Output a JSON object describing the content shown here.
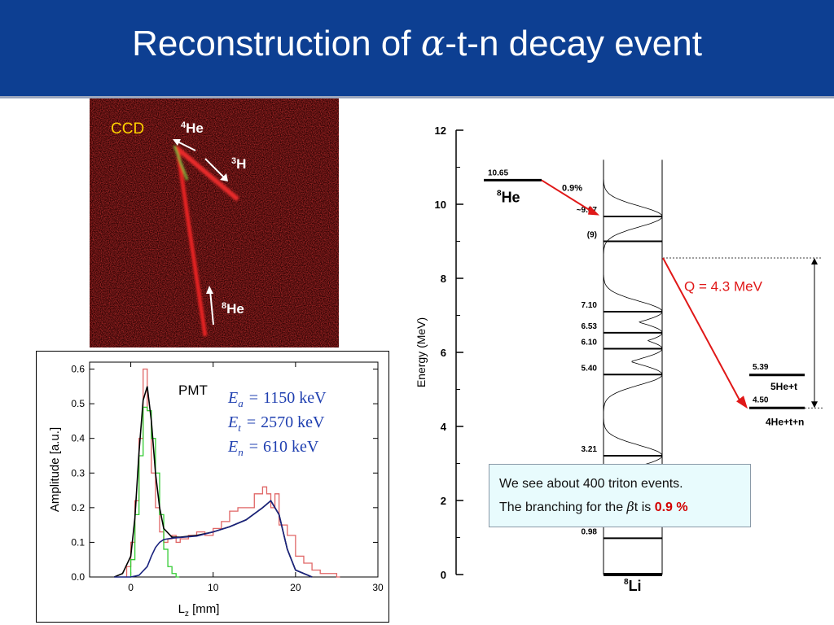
{
  "title": {
    "prefix": "Reconstruction of ",
    "greek": "α",
    "suffix": "-t-n decay event"
  },
  "ccd": {
    "label": "CCD",
    "tracks": {
      "he4": "He",
      "he4_mass": "4",
      "h3": "H",
      "h3_mass": "3",
      "he8": "He",
      "he8_mass": "8"
    }
  },
  "colors": {
    "title_bg": "#0d3f92",
    "ccd_label": "#ffd200",
    "q_arrow": "#e01818",
    "info_bg": "#e8fbfd",
    "branching": "#d20000",
    "energy_text": "#1f3fb0"
  },
  "info": {
    "line1": "We see about 400 triton events.",
    "line2_prefix": "The branching for the ",
    "line2_greek": "β",
    "line2_mid": "t is ",
    "line2_value": "0.9 %"
  },
  "chart_data": [
    {
      "type": "line",
      "panel": "PMT",
      "xlabel": "L",
      "xlabel_sub": "z",
      "xlabel_unit": " [mm]",
      "ylabel": "Amplitude [a.u.]",
      "xlim": [
        -5,
        30
      ],
      "ylim": [
        0.0,
        0.62
      ],
      "xticks": [
        "0",
        "10",
        "20",
        "30"
      ],
      "yticks": [
        "0.0",
        "0.1",
        "0.2",
        "0.3",
        "0.4",
        "0.5",
        "0.6"
      ],
      "annotations": [
        {
          "sym": "E",
          "sub": "a",
          "eq": "=",
          "val": "1150 keV"
        },
        {
          "sym": "E",
          "sub": "t",
          "eq": "=",
          "val": "2570 keV"
        },
        {
          "sym": "E",
          "sub": "n",
          "eq": "=",
          "val": "610 keV"
        }
      ],
      "series": [
        {
          "color": "#e06666",
          "style": "histogram",
          "x": [
            -0.5,
            0,
            0.5,
            1,
            1.5,
            2,
            2.5,
            3,
            3.5,
            4,
            4.5,
            5,
            5.5,
            6,
            7,
            8,
            9,
            10,
            11,
            12,
            13,
            14,
            15,
            16,
            16.5,
            17,
            17.5,
            18,
            19,
            20,
            21,
            22,
            23,
            24,
            25
          ],
          "y": [
            0.03,
            0.1,
            0.22,
            0.4,
            0.6,
            0.48,
            0.3,
            0.2,
            0.13,
            0.1,
            0.11,
            0.12,
            0.1,
            0.11,
            0.12,
            0.13,
            0.12,
            0.14,
            0.16,
            0.19,
            0.2,
            0.2,
            0.24,
            0.26,
            0.24,
            0.2,
            0.24,
            0.15,
            0.12,
            0.06,
            0.04,
            0.02,
            0.01,
            0.01,
            0.0
          ]
        },
        {
          "color": "#33cc33",
          "style": "histogram",
          "x": [
            0,
            0.5,
            1,
            1.5,
            2,
            2.5,
            3,
            3.5,
            4,
            4.5,
            5,
            5.5
          ],
          "y": [
            0.05,
            0.18,
            0.35,
            0.49,
            0.48,
            0.4,
            0.3,
            0.18,
            0.08,
            0.03,
            0.01,
            0.0
          ]
        },
        {
          "color": "#000000",
          "style": "line",
          "x": [
            -2,
            -1,
            0,
            0.5,
            1,
            1.5,
            2,
            2.5,
            3,
            3.5,
            4,
            5,
            6,
            8,
            10,
            12,
            14,
            16,
            17,
            18,
            19,
            20,
            22
          ],
          "y": [
            0.0,
            0.01,
            0.06,
            0.17,
            0.36,
            0.51,
            0.55,
            0.45,
            0.3,
            0.2,
            0.14,
            0.115,
            0.115,
            0.12,
            0.13,
            0.145,
            0.165,
            0.2,
            0.22,
            0.18,
            0.08,
            0.02,
            0.0
          ]
        },
        {
          "color": "#1a237e",
          "style": "line",
          "x": [
            -2,
            0,
            1,
            2,
            2.5,
            3,
            3.5,
            4,
            5,
            6,
            8,
            10,
            12,
            14,
            16,
            17,
            18,
            19,
            20,
            22
          ],
          "y": [
            0.0,
            0.0,
            0.005,
            0.03,
            0.06,
            0.085,
            0.1,
            0.108,
            0.112,
            0.114,
            0.118,
            0.13,
            0.145,
            0.165,
            0.2,
            0.22,
            0.18,
            0.08,
            0.02,
            0.0
          ]
        }
      ]
    },
    {
      "type": "diagram",
      "panel": "level-scheme",
      "ylabel": "Energy (MeV)",
      "ylim": [
        0,
        12
      ],
      "yticks": [
        "0",
        "2",
        "4",
        "6",
        "8",
        "10",
        "12"
      ],
      "parent": {
        "label": "He",
        "mass": "8",
        "energy": 10.65,
        "energy_label": "10.65",
        "branch": "0.9%"
      },
      "daughter": {
        "label": "Li",
        "mass": "8"
      },
      "levels": [
        {
          "energy": 9.67,
          "label": "~9.67",
          "width": 0.4
        },
        {
          "energy": 9.0,
          "label": "(9)",
          "width": 0
        },
        {
          "energy": 7.1,
          "label": "7.10",
          "width": 0.4
        },
        {
          "energy": 6.53,
          "label": "6.53",
          "width": 0.4
        },
        {
          "energy": 6.1,
          "label": "6.10",
          "width": 0.4
        },
        {
          "energy": 5.4,
          "label": "5.40",
          "width": 0.4
        },
        {
          "energy": 3.21,
          "label": "3.21",
          "width": 0.4
        },
        {
          "energy": 0.98,
          "label": "0.98",
          "width": 0
        },
        {
          "energy": 0.0,
          "label": "",
          "width": 0
        }
      ],
      "thresholds": [
        {
          "energy": 5.39,
          "value_label": "5.39",
          "name": "5He+t"
        },
        {
          "energy": 4.5,
          "value_label": "4.50",
          "name": "4He+t+n"
        }
      ],
      "q_value": "Q = 4.3 MeV"
    }
  ]
}
